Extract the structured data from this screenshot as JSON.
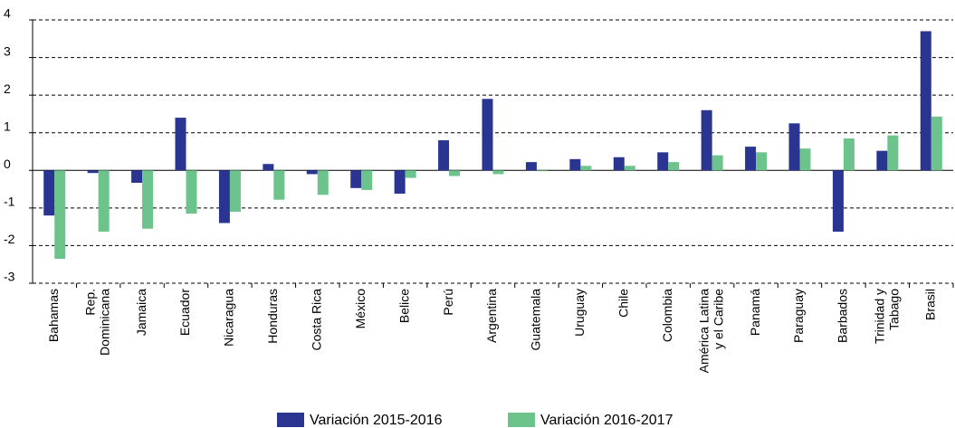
{
  "chart_data": {
    "type": "bar",
    "categories": [
      "Bahamas",
      "Rep.\nDominicana",
      "Jamaica",
      "Ecuador",
      "Nicaragua",
      "Honduras",
      "Costa Rica",
      "México",
      "Belice",
      "Perú",
      "Argentina",
      "Guatemala",
      "Uruguay",
      "Chile",
      "Colombia",
      "América Latina\ny el Caribe",
      "Panamá",
      "Paraguay",
      "Barbados",
      "Trinidad y\nTabago",
      "Brasil"
    ],
    "series": [
      {
        "name": "Variación 2015-2016",
        "color": "#2a3592",
        "values": [
          -1.2,
          -0.07,
          -0.33,
          1.4,
          -1.4,
          0.17,
          -0.1,
          -0.47,
          -0.62,
          0.8,
          1.9,
          0.22,
          0.3,
          0.35,
          0.48,
          1.6,
          0.63,
          1.25,
          -1.63,
          0.52,
          3.7
        ]
      },
      {
        "name": "Variación 2016-2017",
        "color": "#6cc38b",
        "values": [
          -2.35,
          -1.63,
          -1.55,
          -1.15,
          -1.1,
          -0.78,
          -0.65,
          -0.52,
          -0.2,
          -0.15,
          -0.1,
          -0.02,
          0.12,
          0.12,
          0.22,
          0.4,
          0.48,
          0.58,
          0.85,
          0.93,
          1.43
        ]
      }
    ],
    "ylim": [
      -3,
      4
    ],
    "yticks": [
      -3,
      -2,
      -1,
      0,
      1,
      2,
      3,
      4
    ],
    "grid": true
  }
}
